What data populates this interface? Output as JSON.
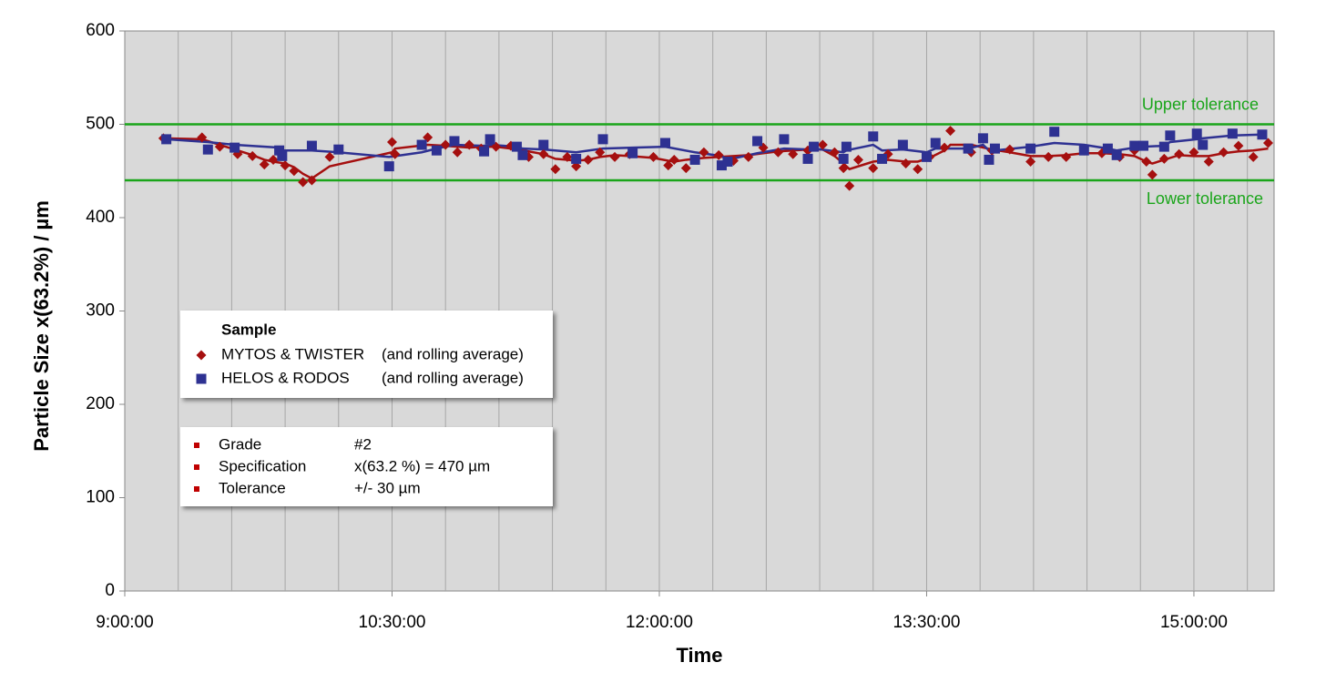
{
  "chart_data": {
    "type": "scatter",
    "x_label": "Time",
    "y_label": "Particle Size x(63.2%) / µm",
    "xlim": [
      540,
      927
    ],
    "xticks": [
      {
        "value": 540,
        "label": "9:00:00"
      },
      {
        "value": 630,
        "label": "10:30:00"
      },
      {
        "value": 720,
        "label": "12:00:00"
      },
      {
        "value": 810,
        "label": "13:30:00"
      },
      {
        "value": 900,
        "label": "15:00:00"
      }
    ],
    "x_grid": [
      558,
      576,
      594,
      612,
      630,
      648,
      666,
      684,
      702,
      720,
      738,
      756,
      774,
      792,
      810,
      828,
      846,
      864,
      882,
      900,
      918
    ],
    "ylim": [
      0,
      600
    ],
    "yticks": [
      0,
      100,
      200,
      300,
      400,
      500,
      600
    ],
    "tolerance_lines": [
      {
        "label": "Upper tolerance",
        "value": 500,
        "color": "#1aa51a"
      },
      {
        "label": "Lower tolerance",
        "value": 440,
        "color": "#1aa51a"
      }
    ],
    "legend_title": "Sample",
    "series": [
      {
        "name": "MYTOS & TWISTER",
        "note": "(and rolling average)",
        "color": "#a50f0f",
        "marker": "diamond",
        "x": [
          553,
          566,
          572,
          578,
          583,
          587,
          590,
          594,
          597,
          600,
          603,
          609,
          630,
          631,
          642,
          648,
          652,
          656,
          660,
          665,
          670,
          676,
          681,
          685,
          689,
          692,
          696,
          700,
          705,
          710,
          718,
          723,
          725,
          729,
          735,
          740,
          745,
          750,
          755,
          760,
          765,
          770,
          775,
          779,
          782,
          784,
          787,
          792,
          797,
          803,
          807,
          811,
          816,
          818,
          825,
          832,
          838,
          845,
          851,
          857,
          863,
          869,
          875,
          880,
          884,
          886,
          890,
          895,
          900,
          905,
          910,
          915,
          920,
          925
        ],
        "values": [
          485,
          486,
          476,
          468,
          466,
          457,
          462,
          456,
          450,
          438,
          440,
          465,
          481,
          468,
          486,
          478,
          470,
          478,
          474,
          476,
          477,
          465,
          468,
          452,
          465,
          455,
          462,
          470,
          465,
          468,
          465,
          456,
          462,
          453,
          470,
          467,
          461,
          465,
          475,
          470,
          468,
          472,
          478,
          470,
          453,
          434,
          462,
          453,
          468,
          458,
          452,
          465,
          475,
          493,
          470,
          472,
          473,
          460,
          465,
          465,
          472,
          469,
          465,
          472,
          460,
          446,
          463,
          468,
          470,
          460,
          470,
          477,
          465,
          480
        ],
        "rolling_average": [
          485,
          484,
          478,
          472,
          467,
          462,
          460,
          458,
          454,
          447,
          442,
          455,
          470,
          474,
          478,
          477,
          476,
          475,
          476,
          476,
          474,
          471,
          468,
          463,
          462,
          461,
          462,
          465,
          467,
          466,
          464,
          461,
          460,
          462,
          464,
          465,
          466,
          467,
          469,
          471,
          472,
          473,
          473,
          466,
          458,
          452,
          455,
          460,
          462,
          460,
          460,
          464,
          472,
          478,
          478,
          473,
          470,
          466,
          466,
          467,
          469,
          469,
          468,
          466,
          460,
          458,
          462,
          467,
          466,
          466,
          469,
          471,
          472,
          474
        ]
      },
      {
        "name": "HELOS & RODOS",
        "note": "(and rolling average)",
        "color": "#2e3192",
        "marker": "square",
        "x": [
          554,
          568,
          577,
          592,
          593,
          603,
          612,
          629,
          640,
          645,
          651,
          661,
          663,
          672,
          674,
          681,
          692,
          701,
          711,
          722,
          732,
          741,
          743,
          753,
          762,
          770,
          772,
          782,
          783,
          792,
          795,
          802,
          810,
          813,
          824,
          829,
          831,
          833,
          845,
          853,
          863,
          871,
          874,
          880,
          883,
          890,
          892,
          901,
          903,
          913,
          923
        ],
        "values": [
          484,
          473,
          475,
          472,
          466,
          477,
          473,
          455,
          478,
          472,
          482,
          471,
          484,
          476,
          467,
          478,
          463,
          484,
          469,
          480,
          462,
          456,
          460,
          482,
          484,
          463,
          476,
          463,
          476,
          487,
          463,
          478,
          465,
          480,
          474,
          485,
          462,
          474,
          474,
          492,
          472,
          474,
          467,
          477,
          477,
          476,
          488,
          490,
          478,
          490,
          489
        ],
        "rolling_average": [
          484,
          481,
          478,
          475,
          472,
          472,
          470,
          465,
          470,
          474,
          478,
          477,
          478,
          476,
          474,
          473,
          470,
          474,
          475,
          476,
          470,
          466,
          462,
          469,
          474,
          473,
          474,
          470,
          472,
          478,
          472,
          473,
          470,
          474,
          474,
          478,
          472,
          472,
          476,
          480,
          478,
          474,
          472,
          475,
          476,
          477,
          481,
          484,
          485,
          488,
          489
        ]
      }
    ],
    "info_box": {
      "bullet_color": "#c00000",
      "rows": [
        [
          "Grade",
          "#2"
        ],
        [
          "Specification",
          "x(63.2 %) = 470 µm"
        ],
        [
          "Tolerance",
          "+/- 30 µm"
        ]
      ]
    }
  }
}
